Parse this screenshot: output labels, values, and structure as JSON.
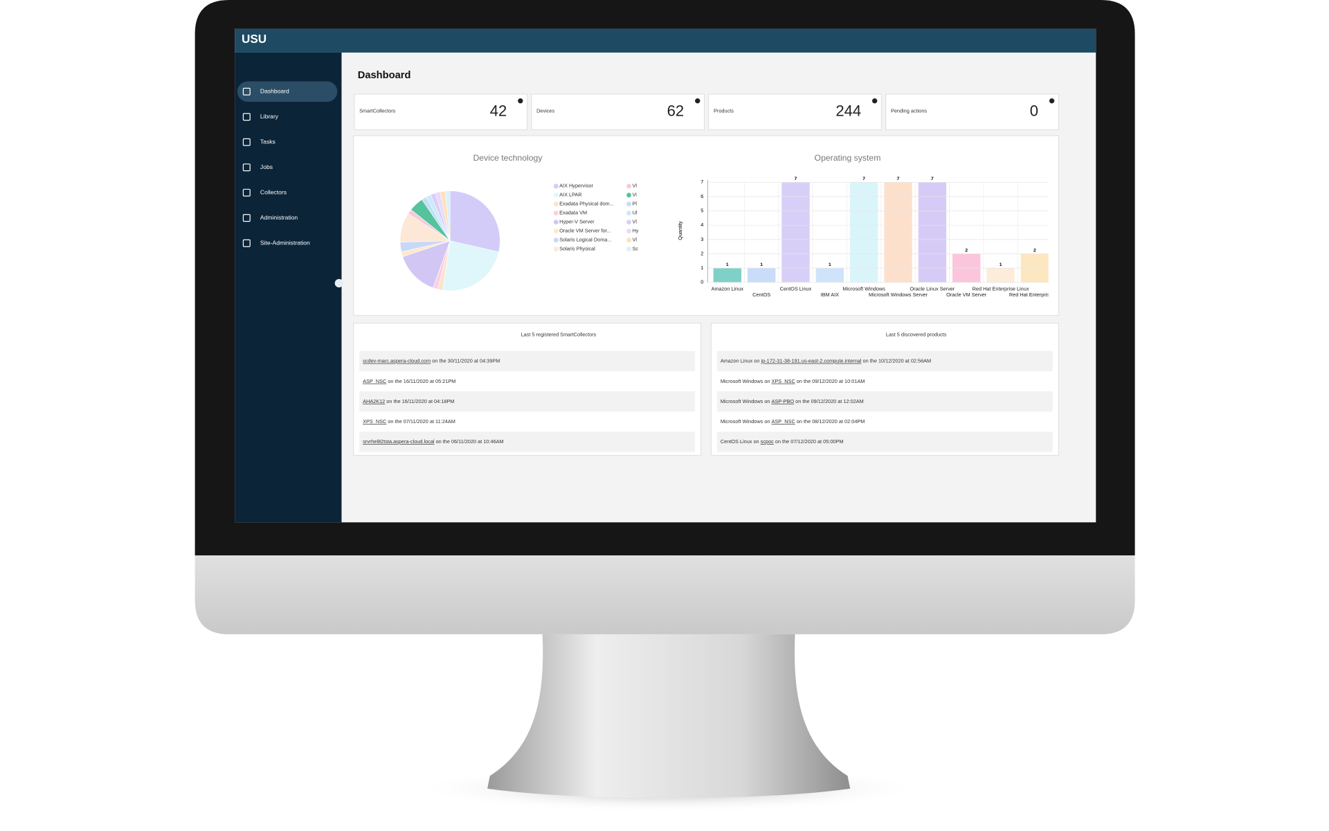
{
  "app": {
    "logo": "USU",
    "page_title": "Dashboard"
  },
  "sidebar": {
    "items": [
      "Dashboard",
      "Library",
      "Tasks",
      "Jobs",
      "Collectors",
      "Administration",
      "Site-Administration"
    ]
  },
  "cards": [
    {
      "label": "SmartCollectors",
      "value": "42"
    },
    {
      "label": "Devices",
      "value": "62"
    },
    {
      "label": "Products",
      "value": "244"
    },
    {
      "label": "Pending actions",
      "value": "0"
    }
  ],
  "chart_data": [
    {
      "type": "pie",
      "title": "Device technology",
      "categories": [
        "AIX Hypervisor",
        "AIX LPAR",
        "Exadata Physical dom...",
        "Exadata VM",
        "Hyper-V Server",
        "Oracle VM Server for...",
        "Solaris Logical Doma...",
        "Solaris Physical",
        "Vl",
        "Vi",
        "Pl",
        "Ul",
        "Vl",
        "Hy",
        "Vl",
        "Sc"
      ],
      "values": [
        18,
        15,
        1,
        1,
        9,
        1,
        2,
        6,
        1,
        3,
        1,
        1,
        1,
        1,
        1,
        1
      ],
      "colors": [
        "#d4ccf8",
        "#dff7fb",
        "#fbe3cc",
        "#fbd0df",
        "#d2c6f5",
        "#ffe9c9",
        "#c8d8f9",
        "#fde7d6",
        "#f7c9dc",
        "#55c39b",
        "#c4def8",
        "#cbe9f9",
        "#d8d0f8",
        "#ead8fb",
        "#fde1b8",
        "#d9f2fb"
      ]
    },
    {
      "type": "bar",
      "title": "Operating system",
      "y_label": "Quantity",
      "categories": [
        "Amazon Linux",
        "CentOS",
        "CentOS Linux",
        "IBM AIX",
        "Microsoft Windows",
        "Microsoft Windows Server",
        "Oracle Linux Server",
        "Oracle VM Server",
        "Red Hat Enterprise Linux",
        "Red Hat Enterprise Lin"
      ],
      "values": [
        1,
        1,
        7,
        1,
        7,
        7,
        7,
        2,
        1,
        2
      ],
      "colors": [
        "#7fd1c7",
        "#c9dcf9",
        "#d8cff9",
        "#cfe4fb",
        "#d9f5fa",
        "#fde0cc",
        "#d6cbf7",
        "#fbc6dc",
        "#fdecd9",
        "#fde7c0"
      ],
      "ylim": [
        0,
        7
      ],
      "yticks": [
        0,
        1,
        2,
        3,
        4,
        5,
        6,
        7
      ],
      "grid": true
    }
  ],
  "lists": [
    {
      "title": "Last 5 registered SmartCollectors",
      "rows": [
        [
          "scdev-marc.aspera-cloud.com",
          " on the 30/11/2020 at 04:39PM"
        ],
        [
          "ASP_NSC",
          " on the 16/11/2020 at 05:21PM"
        ],
        [
          "AHA2K12",
          " on the 16/11/2020 at 04:18PM"
        ],
        [
          "XPS_NSC",
          " on the 07/11/2020 at 11:24AM"
        ],
        [
          "srvrhel82tsta.aspera-cloud.local",
          " on the 06/11/2020 at 10:46AM"
        ]
      ]
    },
    {
      "title": "Last 5 discovered products",
      "rows": [
        [
          "Amazon Linux on ",
          "ip-172-31-38-191.us-east-2.compute.internal",
          " on the 10/12/2020 at 02:56AM"
        ],
        [
          "Microsoft Windows on ",
          "XPS_NSC",
          " on the 09/12/2020 at 10:01AM"
        ],
        [
          "Microsoft Windows on ",
          "ASP-PBO",
          " on the 09/12/2020 at 12:02AM"
        ],
        [
          "Microsoft Windows on ",
          "ASP_NSC",
          " on the 08/12/2020 at 02:04PM"
        ],
        [
          "CentOS Linux on ",
          "scpoc",
          " on the 07/12/2020 at 05:00PM"
        ]
      ]
    }
  ]
}
